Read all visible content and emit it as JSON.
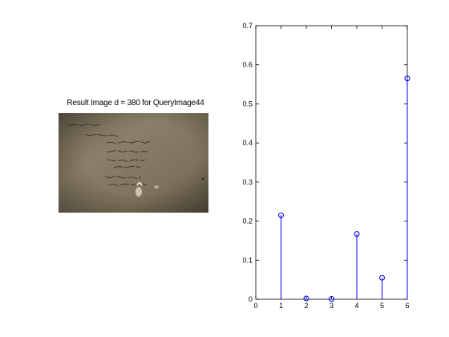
{
  "left_panel": {
    "title": "Result Image d = 380 for QueryImage44",
    "photo": {
      "description_icon": "handwritten-note-photo-icon",
      "handwriting_lines": [
        "* IT'S  THE LAST CASE.",
        "NO ... TO THE NEW SAGE",
        "IT'S PUBLIC STRAIGHTS IS BACKS",
        "IT'S PROPHESIED. IT'S TRUTH.",
        "IT'S SHAPE, LIFE & DEATH.",
        "SPACE, LIVE & MOVE",
        "HOW FAST? YOUR RELIGIONS",
        "ORAL SEX & SHOWING FAITH?"
      ]
    }
  },
  "chart_data": {
    "type": "stem",
    "x": [
      1,
      2,
      3,
      4,
      5,
      6
    ],
    "values": [
      0.215,
      0.002,
      0.001,
      0.167,
      0.055,
      0.565
    ],
    "xlim": [
      0,
      6
    ],
    "ylim": [
      0,
      0.7
    ],
    "xticks": [
      0,
      1,
      2,
      3,
      4,
      5,
      6
    ],
    "yticks": [
      0,
      0.1,
      0.2,
      0.3,
      0.4,
      0.5,
      0.6,
      0.7
    ],
    "xtick_labels": [
      "0",
      "1",
      "2",
      "3",
      "4",
      "5",
      "6"
    ],
    "ytick_labels": [
      "0",
      "0.1",
      "0.2",
      "0.3",
      "0.4",
      "0.5",
      "0.6",
      "0.7"
    ],
    "title": "",
    "xlabel": "",
    "ylabel": "",
    "grid": false,
    "color": "#0000ff",
    "marker": "circle"
  }
}
